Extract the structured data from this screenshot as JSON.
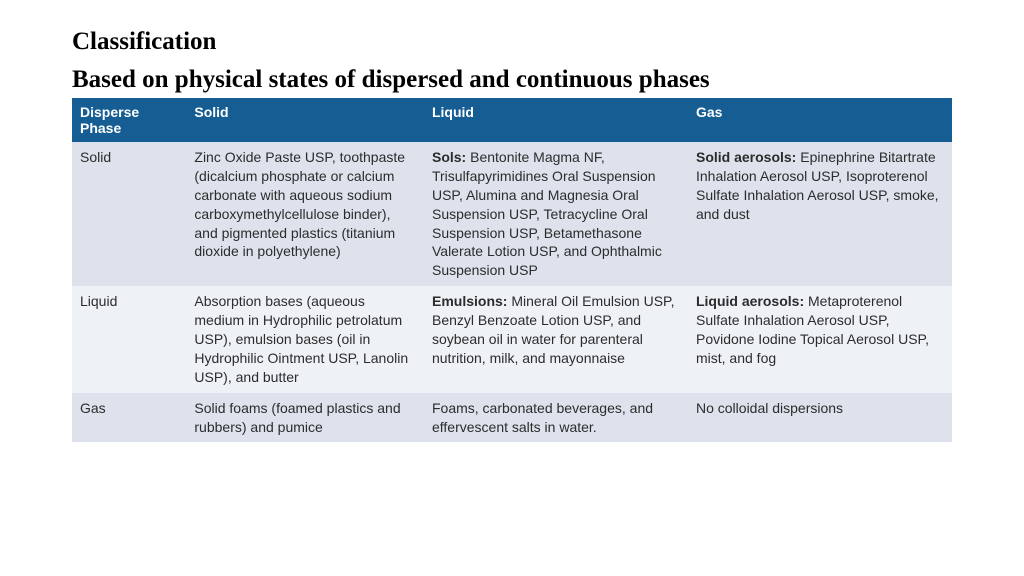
{
  "title1": "Classification",
  "title2": "Based on physical states of dispersed and continuous phases",
  "table": {
    "headers": [
      "Disperse Phase",
      "Solid",
      "Liquid",
      "Gas"
    ],
    "rows": [
      {
        "label": "Solid",
        "solid": {
          "bold": "",
          "text": "Zinc Oxide Paste USP, toothpaste (dicalcium phosphate or calcium carbonate with aqueous sodium carboxymethylcellulose binder), and pigmented plastics (titanium dioxide in polyethylene)"
        },
        "liquid": {
          "bold": "Sols:",
          "text": " Bentonite Magma NF, Trisulfapyrimidines Oral Suspension USP, Alumina and Magnesia Oral Suspension USP, Tetracycline Oral Suspension USP, Betamethasone Valerate Lotion USP, and Ophthalmic Suspension USP"
        },
        "gas": {
          "bold": "Solid aerosols:",
          "text": " Epinephrine Bitartrate Inhalation Aerosol USP, Isoproterenol Sulfate Inhalation Aerosol USP, smoke, and dust"
        }
      },
      {
        "label": "Liquid",
        "solid": {
          "bold": "",
          "text": "Absorption bases (aqueous medium in Hydrophilic petrolatum USP), emulsion bases (oil in Hydrophilic Ointment USP, Lanolin USP), and butter"
        },
        "liquid": {
          "bold": "Emulsions:",
          "text": " Mineral Oil Emulsion USP, Benzyl Benzoate Lotion USP, and soybean oil in water for parenteral nutrition, milk, and mayonnaise"
        },
        "gas": {
          "bold": "Liquid aerosols:",
          "text": " Metaproterenol Sulfate Inhalation Aerosol USP, Povidone Iodine Topical Aerosol USP, mist, and fog"
        }
      },
      {
        "label": "Gas",
        "solid": {
          "bold": "",
          "text": "Solid foams (foamed plastics and rubbers) and pumice"
        },
        "liquid": {
          "bold": "",
          "text": "Foams, carbonated beverages, and effervescent salts in water."
        },
        "gas": {
          "bold": "",
          "text": "No colloidal dispersions"
        }
      }
    ]
  },
  "colors": {
    "header_bg": "#165d94",
    "header_fg": "#ffffff",
    "band_a": "#dde2ed",
    "band_b": "#eef1f6",
    "text": "#2c2c2c"
  }
}
